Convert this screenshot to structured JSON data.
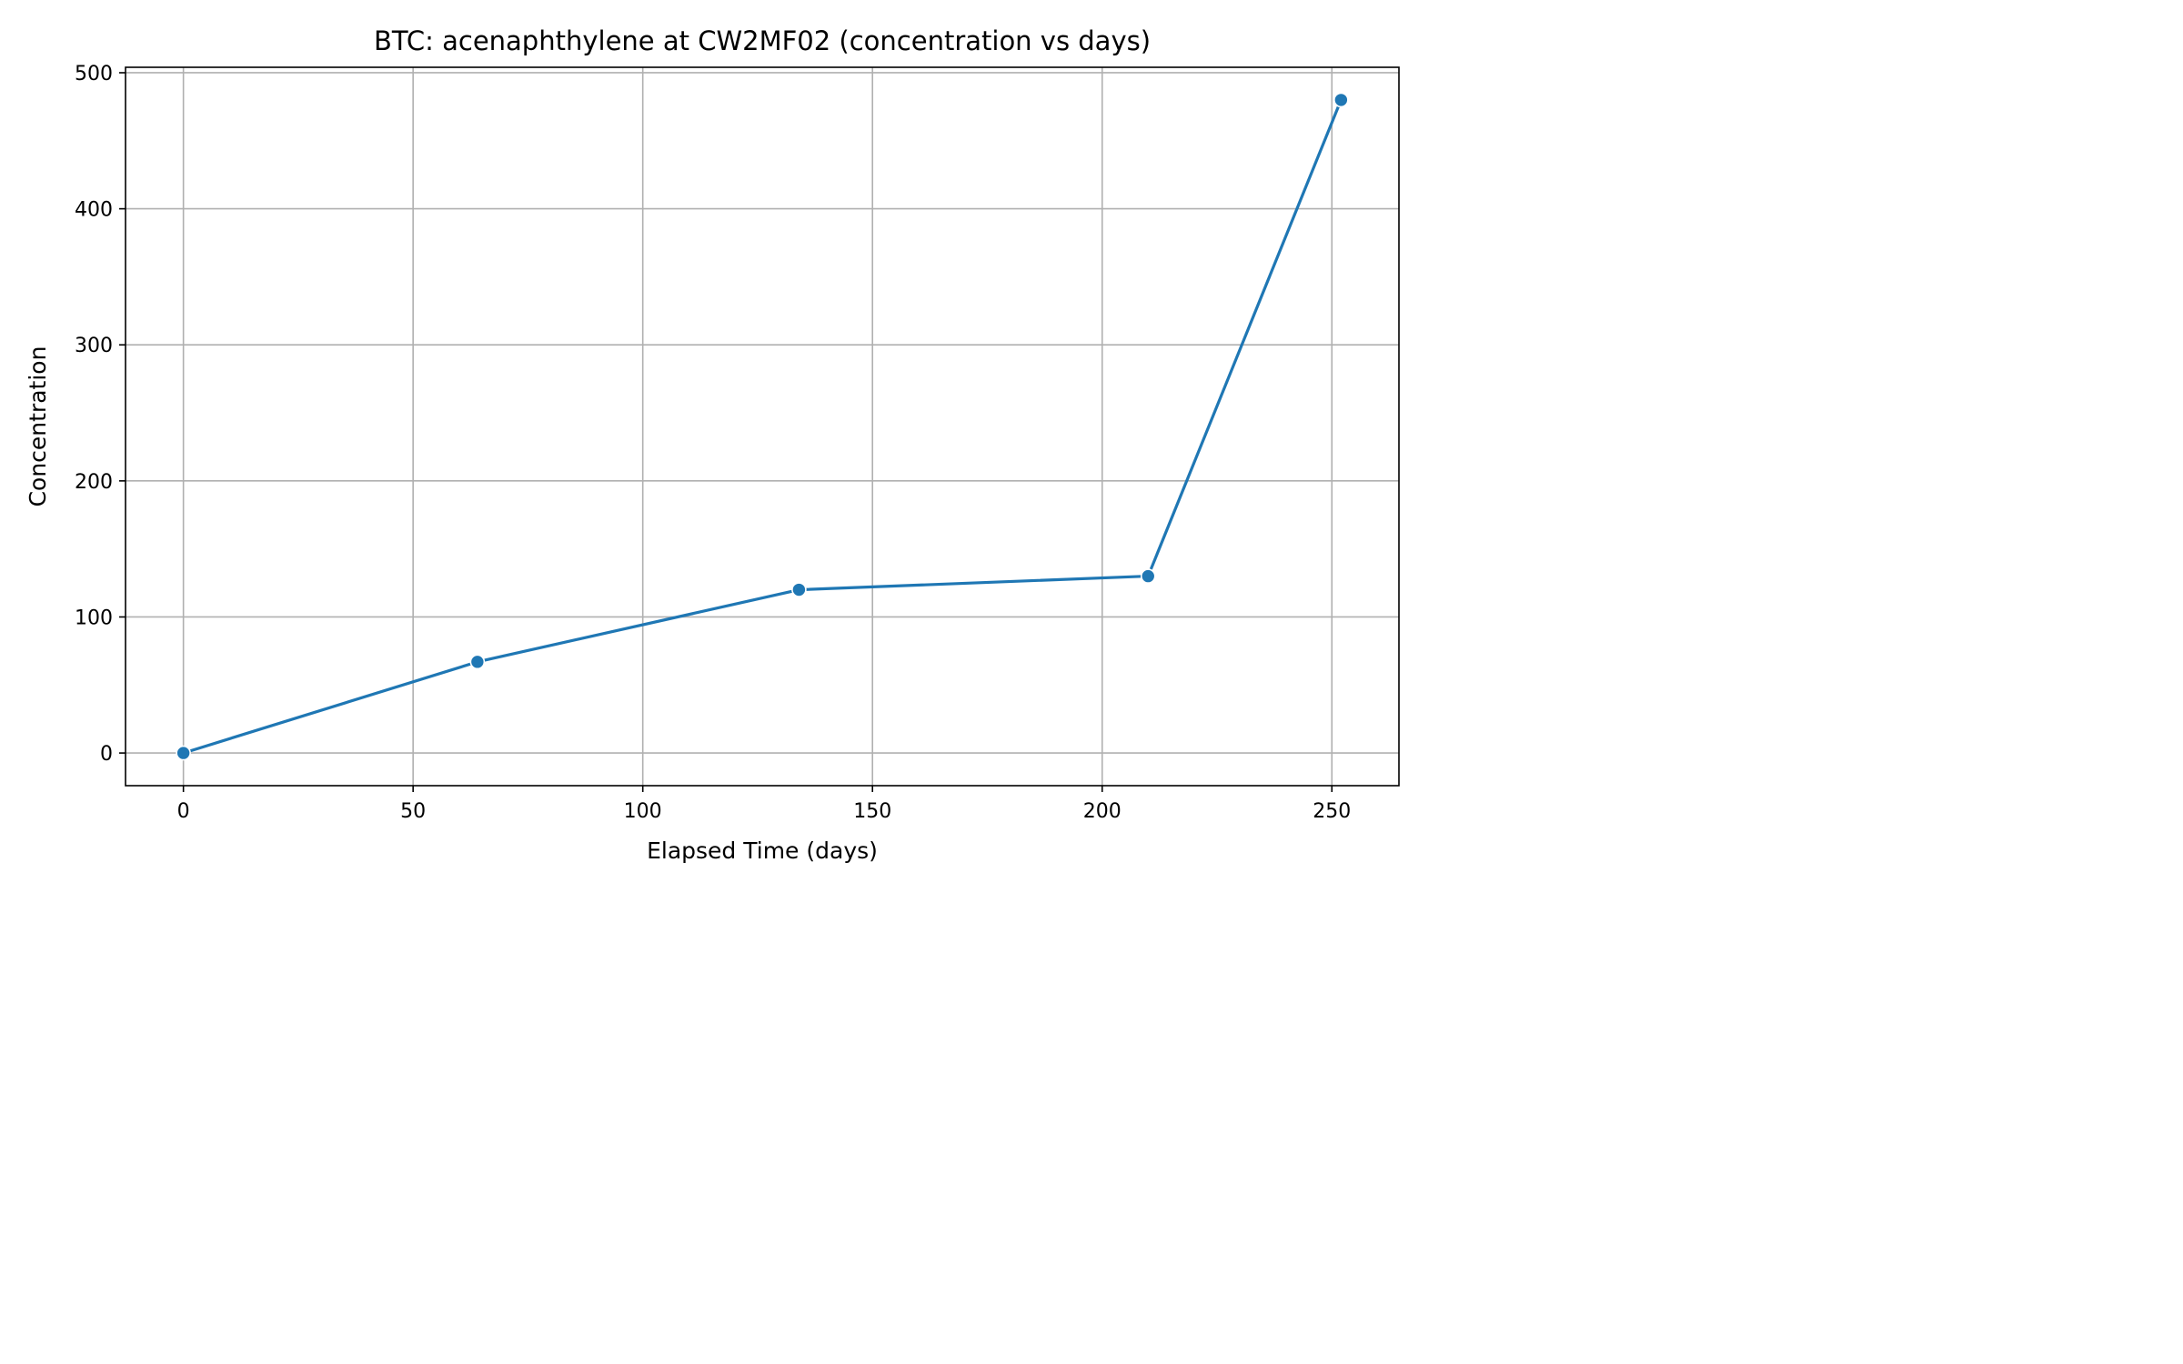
{
  "chart_data": {
    "type": "line",
    "title": "BTC: acenaphthylene at CW2MF02 (concentration vs days)",
    "xlabel": "Elapsed Time (days)",
    "ylabel": "Concentration",
    "xlim": [
      -12.6,
      264.6
    ],
    "ylim": [
      -24,
      504
    ],
    "xticks": [
      0,
      50,
      100,
      150,
      200,
      250
    ],
    "yticks": [
      0,
      100,
      200,
      300,
      400,
      500
    ],
    "grid": true,
    "series": [
      {
        "color": "#1f77b4",
        "marker": "circle",
        "x": [
          0,
          64,
          134,
          210,
          252
        ],
        "y": [
          0,
          67,
          120,
          130,
          480
        ]
      }
    ]
  }
}
